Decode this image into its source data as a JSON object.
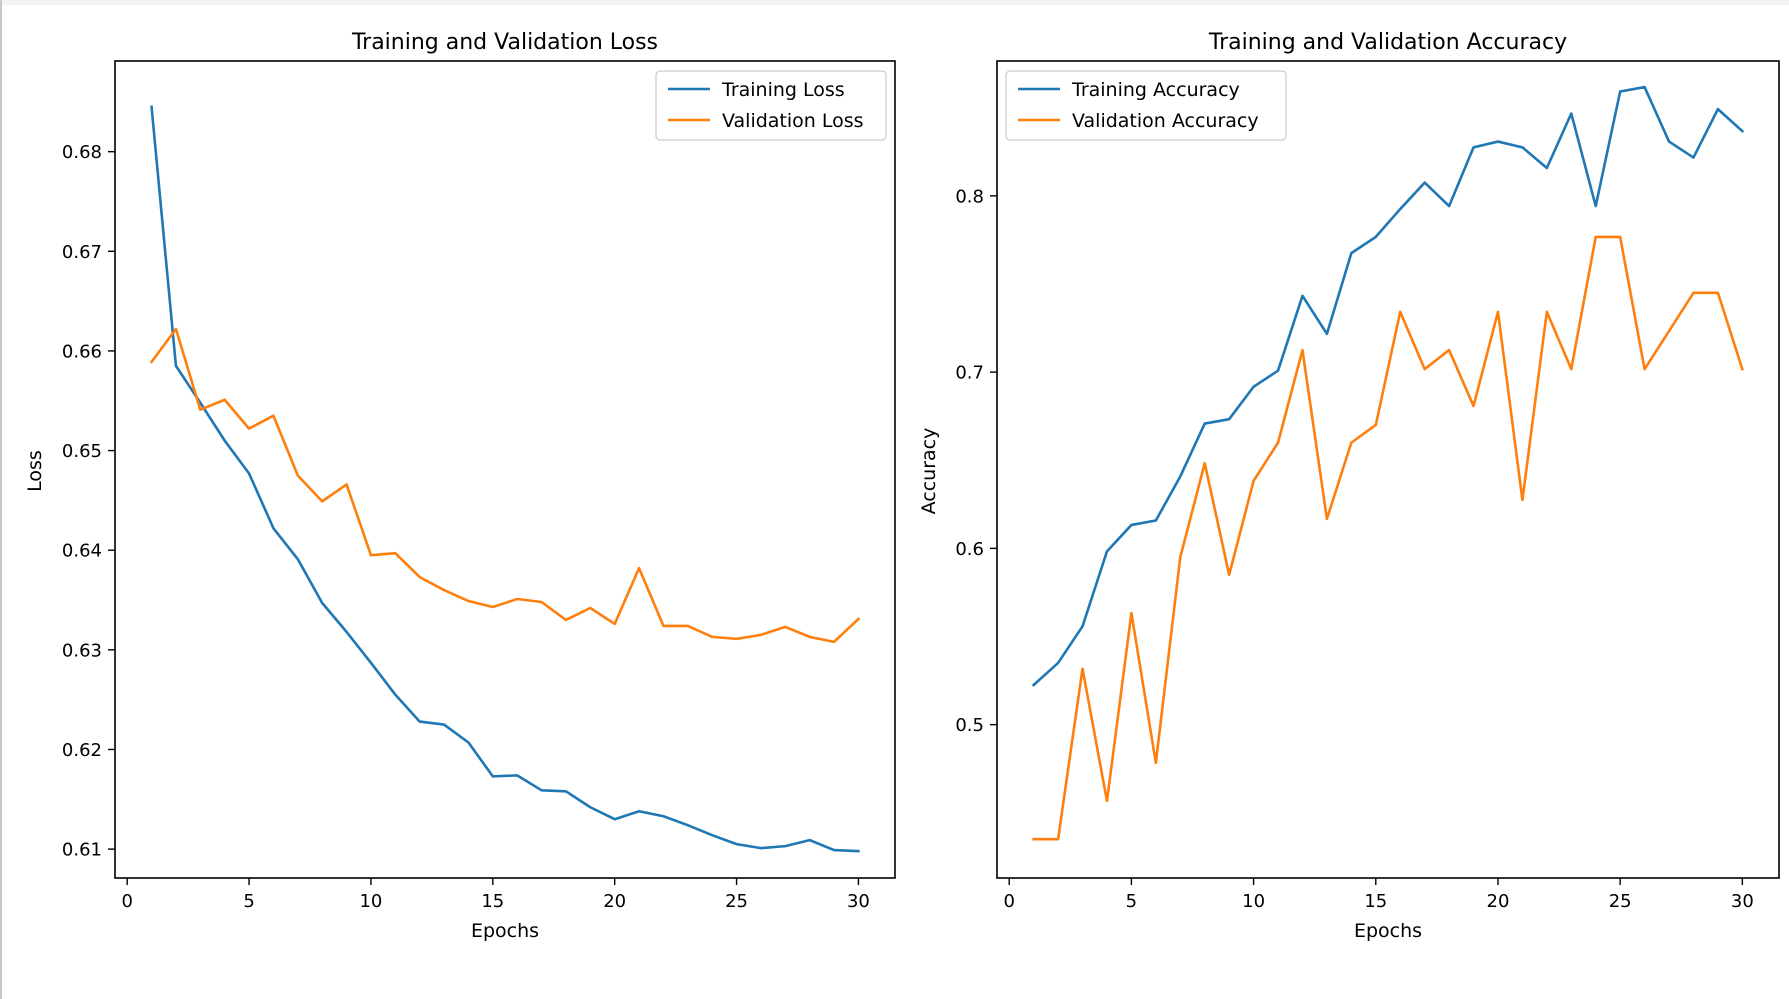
{
  "colors": {
    "training": "#1f77b4",
    "validation": "#ff7f0e"
  },
  "chart_data": [
    {
      "type": "line",
      "title": "Training and Validation Loss",
      "xlabel": "Epochs",
      "ylabel": "Loss",
      "xlim": [
        -0.5,
        31.5
      ],
      "ylim": [
        0.6071,
        0.6891
      ],
      "xticks": [
        0,
        5,
        10,
        15,
        20,
        25,
        30
      ],
      "yticks": [
        0.61,
        0.62,
        0.63,
        0.64,
        0.65,
        0.66,
        0.67,
        0.68
      ],
      "ytick_decimals": 2,
      "legend": "upper right",
      "grid": false,
      "x": [
        1,
        2,
        3,
        4,
        5,
        6,
        7,
        8,
        9,
        10,
        11,
        12,
        13,
        14,
        15,
        16,
        17,
        18,
        19,
        20,
        21,
        22,
        23,
        24,
        25,
        26,
        27,
        28,
        29,
        30
      ],
      "series": [
        {
          "name": "Training Loss",
          "color_key": "training",
          "values": [
            0.6845,
            0.6585,
            0.6548,
            0.651,
            0.6477,
            0.6422,
            0.6391,
            0.6347,
            0.6318,
            0.6287,
            0.6255,
            0.6228,
            0.6225,
            0.6207,
            0.6173,
            0.6174,
            0.6159,
            0.6158,
            0.6142,
            0.613,
            0.6138,
            0.6133,
            0.6124,
            0.6114,
            0.6105,
            0.6101,
            0.6103,
            0.6109,
            0.6099,
            0.6098
          ]
        },
        {
          "name": "Validation Loss",
          "color_key": "validation",
          "values": [
            0.6589,
            0.6622,
            0.6541,
            0.6551,
            0.6522,
            0.6535,
            0.6475,
            0.6449,
            0.6466,
            0.6395,
            0.6397,
            0.6373,
            0.636,
            0.6349,
            0.6343,
            0.6351,
            0.6348,
            0.633,
            0.6342,
            0.6326,
            0.6382,
            0.6324,
            0.6324,
            0.6313,
            0.6311,
            0.6315,
            0.6323,
            0.6313,
            0.6308,
            0.6331
          ]
        }
      ]
    },
    {
      "type": "line",
      "title": "Training and Validation Accuracy",
      "xlabel": "Epochs",
      "ylabel": "Accuracy",
      "xlim": [
        -0.5,
        31.5
      ],
      "ylim": [
        0.413,
        0.8765
      ],
      "xticks": [
        0,
        5,
        10,
        15,
        20,
        25,
        30
      ],
      "yticks": [
        0.5,
        0.6,
        0.7,
        0.8
      ],
      "ytick_decimals": 1,
      "legend": "upper left",
      "grid": false,
      "x": [
        1,
        2,
        3,
        4,
        5,
        6,
        7,
        8,
        9,
        10,
        11,
        12,
        13,
        14,
        15,
        16,
        17,
        18,
        19,
        20,
        21,
        22,
        23,
        24,
        25,
        26,
        27,
        28,
        29,
        30
      ],
      "series": [
        {
          "name": "Training Accuracy",
          "color_key": "training",
          "values": [
            0.5225,
            0.535,
            0.5558,
            0.5983,
            0.6133,
            0.6158,
            0.6408,
            0.6708,
            0.6733,
            0.6917,
            0.7008,
            0.7433,
            0.7217,
            0.7675,
            0.7767,
            0.7925,
            0.8075,
            0.7942,
            0.8275,
            0.8308,
            0.8275,
            0.8158,
            0.8467,
            0.7942,
            0.8592,
            0.8617,
            0.8308,
            0.8217,
            0.8492,
            0.8367
          ]
        },
        {
          "name": "Validation Accuracy",
          "color_key": "validation",
          "values": [
            0.435,
            0.435,
            0.5317,
            0.4567,
            0.5633,
            0.4783,
            0.595,
            0.6483,
            0.585,
            0.6383,
            0.66,
            0.7125,
            0.6167,
            0.66,
            0.67,
            0.7342,
            0.7017,
            0.7125,
            0.6808,
            0.7342,
            0.6275,
            0.7342,
            0.7017,
            0.7767,
            0.7767,
            0.7017,
            0.7233,
            0.745,
            0.745,
            0.7017
          ]
        }
      ]
    }
  ]
}
